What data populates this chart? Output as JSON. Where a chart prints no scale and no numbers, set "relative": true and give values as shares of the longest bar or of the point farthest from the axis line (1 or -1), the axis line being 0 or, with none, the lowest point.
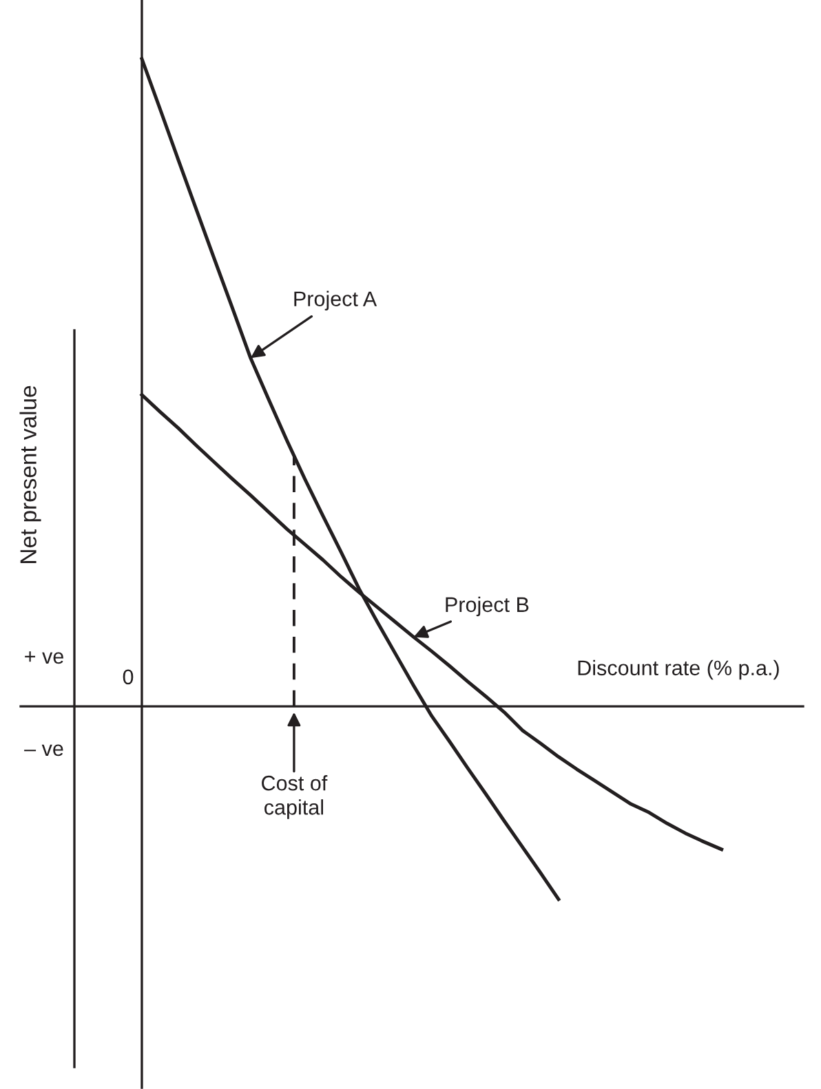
{
  "chart_data": {
    "type": "line",
    "relative": true,
    "xlabel": "Discount rate (% p.a.)",
    "ylabel": "Net present value",
    "categories": [
      null,
      null,
      null,
      null,
      null,
      null,
      null,
      null,
      null,
      null,
      null,
      null,
      null,
      null,
      null,
      null,
      null,
      null,
      null,
      null,
      null,
      null,
      null,
      null,
      null,
      null,
      null,
      null,
      null,
      null,
      null,
      null,
      null
    ],
    "series": [
      {
        "name": "Project A",
        "color": "#231f20",
        "values": [
          1.0,
          0.923,
          0.845,
          0.768,
          0.691,
          0.615,
          0.538,
          0.474,
          0.411,
          0.351,
          0.294,
          0.238,
          0.181,
          0.13,
          0.081,
          0.032,
          -0.015,
          -0.055,
          -0.096,
          -0.136,
          -0.177,
          -0.217,
          -0.257,
          -0.298,
          null,
          null,
          null,
          null,
          null,
          null,
          null,
          null,
          null
        ]
      },
      {
        "name": "Project B",
        "color": "#231f20",
        "values": [
          0.481,
          0.455,
          0.43,
          0.403,
          0.377,
          0.351,
          0.326,
          0.3,
          0.274,
          0.25,
          0.226,
          0.2,
          0.176,
          0.153,
          0.13,
          0.107,
          0.085,
          0.062,
          0.038,
          0.015,
          -0.009,
          -0.037,
          -0.057,
          -0.078,
          -0.097,
          -0.115,
          -0.133,
          -0.151,
          -0.164,
          -0.181,
          -0.196,
          -0.209,
          -0.221
        ]
      }
    ],
    "annotations": [
      "+ ve",
      "– ve",
      "0",
      "Cost of\ncapital"
    ],
    "marker": "none",
    "line_style": "solid"
  }
}
